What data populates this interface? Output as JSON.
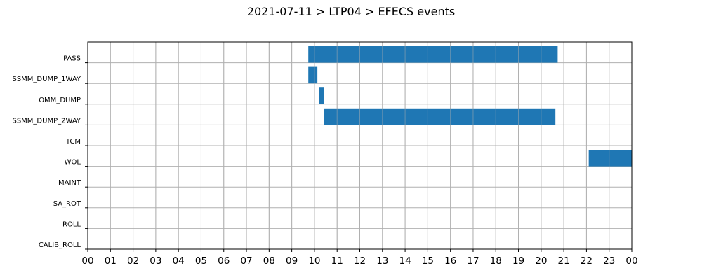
{
  "title": "2021-07-11 > LTP04 > EFECS events",
  "chart_data": {
    "type": "bar",
    "orientation": "horizontal-timeline",
    "title": "2021-07-11 > LTP04 > EFECS events",
    "xlabel": "",
    "ylabel": "",
    "xlim": [
      0,
      24
    ],
    "x_unit": "hour of day",
    "grid": true,
    "legend": "none",
    "bar_color": "#1f77b4",
    "categories": [
      "PASS",
      "SSMM_DUMP_1WAY",
      "OMM_DUMP",
      "SSMM_DUMP_2WAY",
      "TCM",
      "WOL",
      "MAINT",
      "SA_ROT",
      "ROLL",
      "CALIB_ROLL"
    ],
    "x_tick_labels": [
      "00",
      "01",
      "02",
      "03",
      "04",
      "05",
      "06",
      "07",
      "08",
      "09",
      "10",
      "11",
      "12",
      "13",
      "14",
      "15",
      "16",
      "17",
      "18",
      "19",
      "20",
      "21",
      "22",
      "23",
      "00"
    ],
    "events": [
      {
        "category": "PASS",
        "start": 9.73,
        "end": 20.73
      },
      {
        "category": "SSMM_DUMP_1WAY",
        "start": 9.73,
        "end": 10.13
      },
      {
        "category": "OMM_DUMP",
        "start": 10.2,
        "end": 10.43
      },
      {
        "category": "SSMM_DUMP_2WAY",
        "start": 10.43,
        "end": 20.63
      },
      {
        "category": "WOL",
        "start": 22.1,
        "end": 24.0
      }
    ]
  }
}
